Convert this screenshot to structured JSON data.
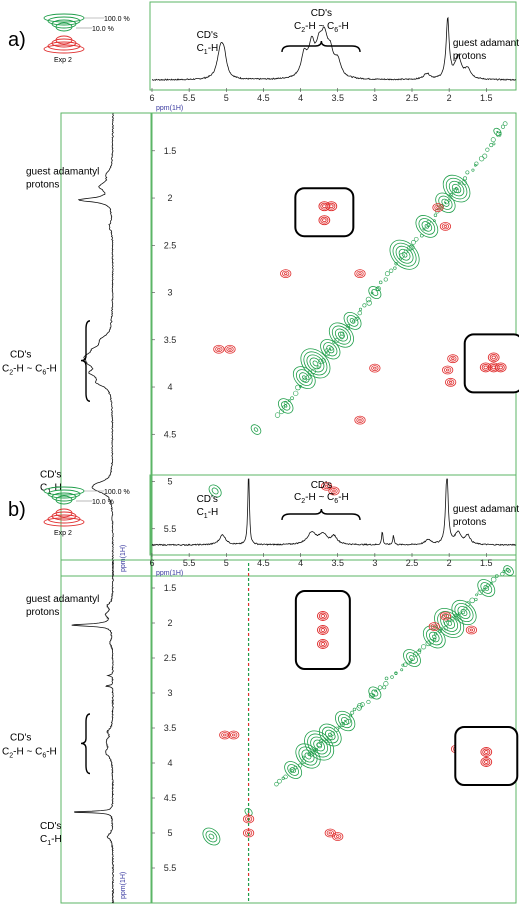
{
  "chart_data": [
    {
      "panel_label": "a)",
      "type": "scatter",
      "xlabel": "ppm(1H)",
      "ylabel": "ppm(1H)",
      "x_ticks": [
        "6",
        "5.5",
        "5",
        "4.5",
        "4",
        "3.5",
        "3",
        "2.5",
        "2",
        "1.5"
      ],
      "y_ticks": [
        "1.5",
        "2",
        "2.5",
        "3",
        "3.5",
        "4",
        "4.5",
        "5",
        "5.5"
      ],
      "xlim": [
        6,
        1.1
      ],
      "ylim": [
        1.1,
        6
      ],
      "contour_legend": {
        "high": "100.0 %",
        "low": "10.0 %",
        "experiment": "Exp 2"
      },
      "annotations": {
        "c1": "CD's C1-H",
        "c2c6": "CD's C2-H ~ C6-H",
        "guest": "guest adamantyl protons"
      },
      "series": [
        {
          "name": "",
          "color": "#1f9e4a",
          "points": [
            [
              5.15,
              5.1
            ],
            [
              4.6,
              4.45
            ],
            [
              4.2,
              4.2
            ],
            [
              3.95,
              3.9
            ],
            [
              3.8,
              3.75
            ],
            [
              3.6,
              3.6
            ],
            [
              3.45,
              3.45
            ],
            [
              3.3,
              3.3
            ],
            [
              3.0,
              3.0
            ],
            [
              2.6,
              2.6
            ],
            [
              2.3,
              2.3
            ],
            [
              2.05,
              2.05
            ],
            [
              1.9,
              1.9
            ],
            [
              1.35,
              1.3
            ]
          ]
        },
        {
          "name": "",
          "color": "#e03030",
          "points": [
            [
              3.72,
              2.02
            ],
            [
              3.62,
              2.02
            ],
            [
              3.7,
              2.3
            ],
            [
              3.65,
              5.05
            ],
            [
              3.55,
              5.1
            ],
            [
              5.1,
              3.6
            ],
            [
              4.95,
              3.6
            ],
            [
              4.2,
              2.8
            ],
            [
              3.2,
              2.8
            ],
            [
              3.0,
              3.8
            ],
            [
              3.2,
              4.35
            ],
            [
              2.02,
              3.82
            ],
            [
              1.95,
              3.7
            ],
            [
              1.98,
              3.95
            ],
            [
              2.15,
              2.1
            ],
            [
              2.05,
              2.3
            ]
          ]
        }
      ]
    },
    {
      "panel_label": "b)",
      "type": "scatter",
      "xlabel": "ppm(1H)",
      "ylabel": "ppm(1H)",
      "x_ticks": [
        "6",
        "5.5",
        "5",
        "4.5",
        "4",
        "3.5",
        "3",
        "2.5",
        "2",
        "1.5"
      ],
      "y_ticks": [
        "1.5",
        "2",
        "2.5",
        "3",
        "3.5",
        "4",
        "4.5",
        "5",
        "5.5"
      ],
      "xlim": [
        6,
        1.1
      ],
      "ylim": [
        1.1,
        6
      ],
      "contour_legend": {
        "high": "100.0 %",
        "low": "10.0 %",
        "experiment": "Exp 2"
      },
      "annotations": {
        "c1": "CD's C1-H",
        "c2c6": "CD's C2-H ~ C6-H",
        "guest": "guest adamantyl protons"
      },
      "series": [
        {
          "name": "",
          "color": "#1f9e4a",
          "points": [
            [
              5.2,
              5.05
            ],
            [
              4.7,
              4.7
            ],
            [
              4.1,
              4.1
            ],
            [
              3.9,
              3.9
            ],
            [
              3.75,
              3.75
            ],
            [
              3.6,
              3.6
            ],
            [
              3.4,
              3.4
            ],
            [
              3.0,
              3.0
            ],
            [
              2.5,
              2.5
            ],
            [
              2.2,
              2.2
            ],
            [
              2.0,
              2.0
            ],
            [
              1.8,
              1.85
            ],
            [
              1.5,
              1.5
            ],
            [
              1.2,
              1.25
            ]
          ]
        },
        {
          "name": "",
          "color": "#e03030",
          "points": [
            [
              3.68,
              1.92
            ],
            [
              3.68,
              2.0
            ],
            [
              3.68,
              2.1
            ],
            [
              5.02,
              3.6
            ],
            [
              4.9,
              3.6
            ],
            [
              3.6,
              5.0
            ],
            [
              3.5,
              5.05
            ],
            [
              1.9,
              3.8
            ],
            [
              2.2,
              2.05
            ],
            [
              2.05,
              1.9
            ],
            [
              1.7,
              2.1
            ],
            [
              4.7,
              4.8
            ],
            [
              4.7,
              5.0
            ]
          ]
        }
      ]
    }
  ]
}
